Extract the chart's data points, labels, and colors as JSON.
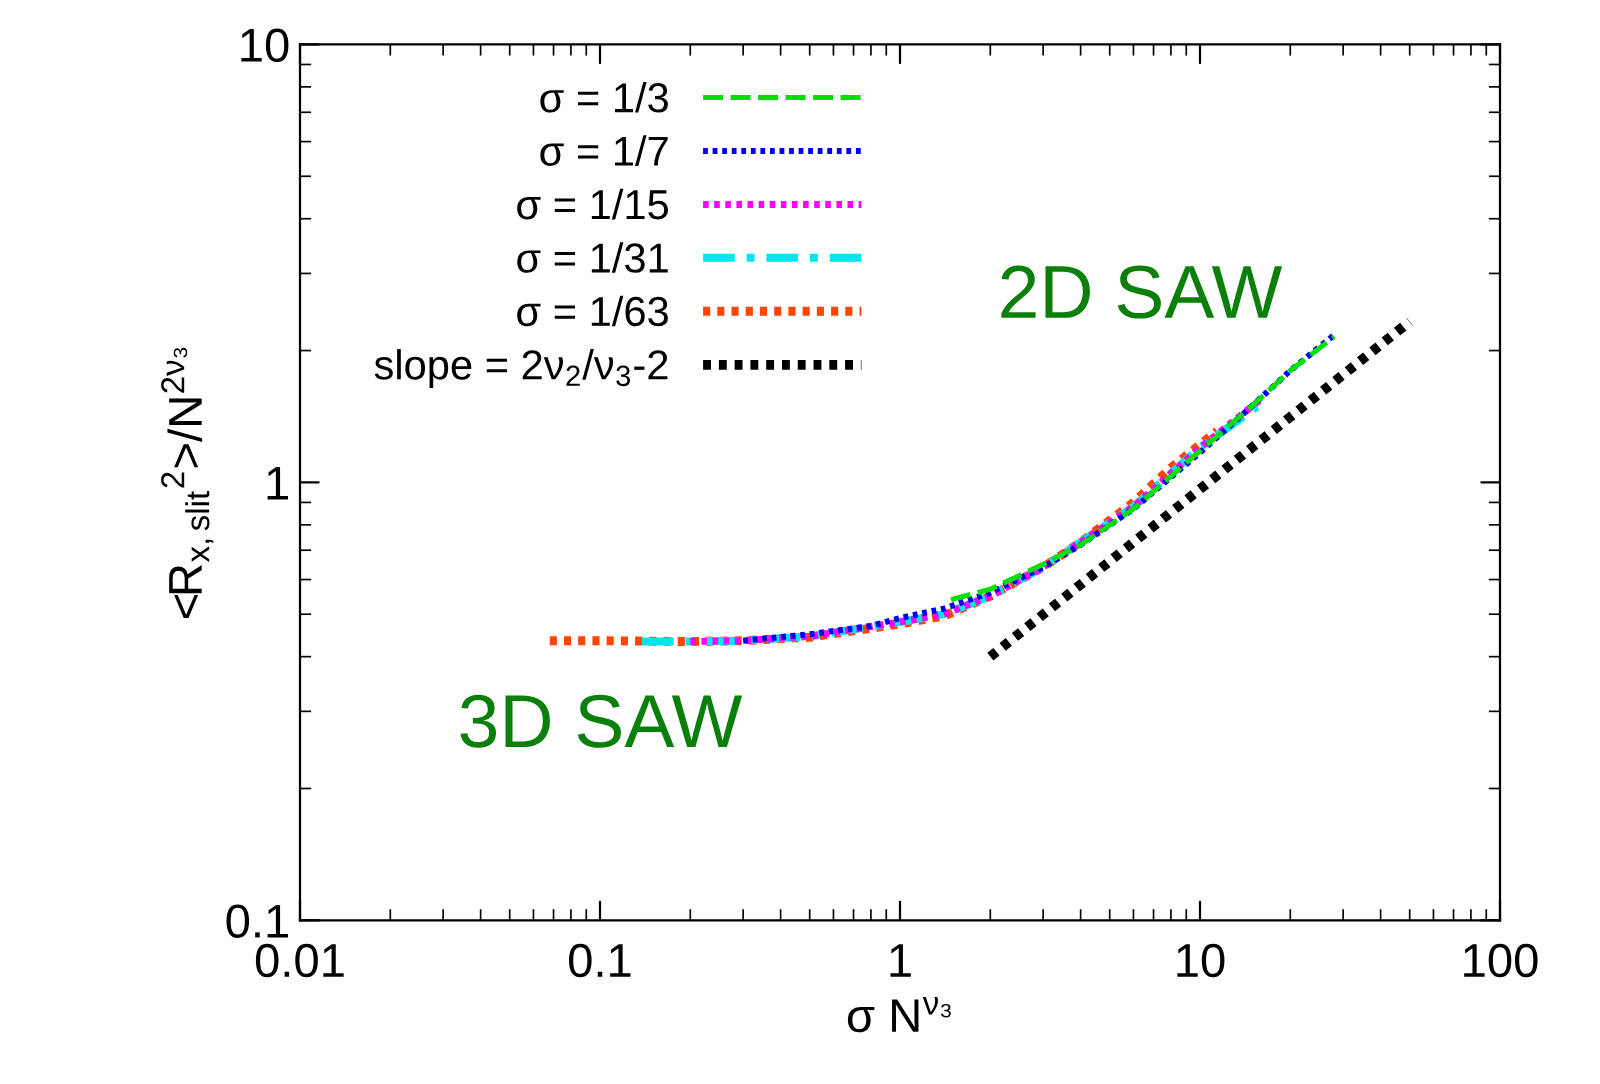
{
  "chart_data": {
    "type": "line",
    "xlabel": "σ N$^{ν₃}$",
    "ylabel": "<R$_{x,slit}$$^{2}$>/N$^{2ν₃}$",
    "log": "xy",
    "xlim": [
      0.01,
      100
    ],
    "ylim": [
      0.1,
      10
    ],
    "xticks": [
      0.01,
      0.1,
      1,
      10,
      100
    ],
    "yticks": [
      0.1,
      1,
      10
    ],
    "grid": false,
    "legend": "top left",
    "marker": "none",
    "annotations": [
      "2D SAW",
      "3D SAW"
    ],
    "series": [
      {
        "name": "σ = 1/3",
        "color": "#00e000",
        "line_style": "dashed",
        "x": [
          1.48,
          2,
          3,
          4,
          6,
          10,
          15,
          20,
          28
        ],
        "values": [
          0.54,
          0.57,
          0.65,
          0.72,
          0.87,
          1.18,
          1.5,
          1.8,
          2.15
        ]
      },
      {
        "name": "σ = 1/7",
        "color": "#0000ee",
        "line_style": "dotted",
        "x": [
          0.3,
          0.5,
          0.8,
          1,
          1.4,
          2,
          3,
          4,
          6,
          10,
          15,
          20,
          28
        ],
        "values": [
          0.435,
          0.45,
          0.47,
          0.49,
          0.515,
          0.56,
          0.64,
          0.72,
          0.87,
          1.17,
          1.5,
          1.8,
          2.17
        ]
      },
      {
        "name": "σ = 1/15",
        "color": "#ff00ff",
        "line_style": "dotted",
        "x": [
          0.2,
          0.3,
          0.5,
          1,
          1.4,
          2,
          3,
          6,
          10,
          16
        ],
        "values": [
          0.433,
          0.435,
          0.445,
          0.48,
          0.5,
          0.55,
          0.64,
          0.88,
          1.2,
          1.55
        ]
      },
      {
        "name": "σ = 1/31",
        "color": "#00e5ee",
        "line_style": "dashdot",
        "x": [
          0.138,
          0.2,
          0.3,
          0.5,
          1,
          1.4,
          2,
          3,
          6,
          10,
          15.5
        ],
        "values": [
          0.433,
          0.433,
          0.435,
          0.445,
          0.48,
          0.5,
          0.55,
          0.64,
          0.88,
          1.2,
          1.49
        ]
      },
      {
        "name": "σ = 1/63",
        "color": "#ff4500",
        "line_style": "dotted",
        "x": [
          0.068,
          0.1,
          0.2,
          0.3,
          0.5,
          1,
          1.4,
          2,
          3,
          4,
          6,
          8,
          11.4
        ],
        "values": [
          0.435,
          0.435,
          0.433,
          0.435,
          0.443,
          0.475,
          0.495,
          0.55,
          0.64,
          0.73,
          0.9,
          1.08,
          1.31
        ]
      },
      {
        "name": "slope = 2ν$_{2}$/ν$_{3}$-2",
        "color": "#000000",
        "line_style": "dotted",
        "x": [
          2,
          50
        ],
        "values": [
          0.4,
          2.33
        ]
      }
    ]
  }
}
